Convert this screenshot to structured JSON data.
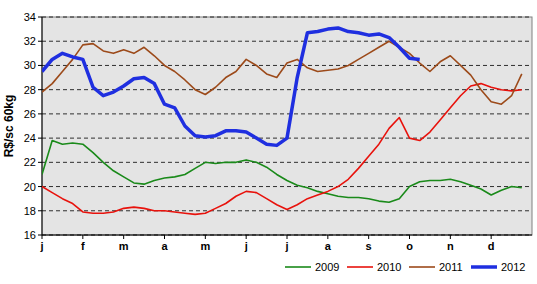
{
  "chart_data": {
    "type": "line",
    "y_label": "R$/sc 60kg",
    "categories": [
      "j",
      null,
      null,
      null,
      "f",
      null,
      null,
      null,
      "m",
      null,
      null,
      null,
      "a",
      null,
      null,
      null,
      "m",
      null,
      null,
      null,
      "j",
      null,
      null,
      null,
      "j",
      null,
      null,
      null,
      "a",
      null,
      null,
      null,
      "s",
      null,
      null,
      null,
      "o",
      null,
      null,
      null,
      "n",
      null,
      null,
      null,
      "d",
      null,
      null,
      null
    ],
    "series": [
      {
        "name": "2009",
        "color": "#1a8a1a",
        "values": [
          21,
          23.8,
          23.5,
          23.6,
          23.5,
          22.8,
          22,
          21.3,
          20.8,
          20.3,
          20.2,
          20.5,
          20.7,
          20.8,
          21,
          21.5,
          22,
          21.9,
          22,
          22,
          22.2,
          22,
          21.6,
          21,
          20.5,
          20.1,
          19.9,
          19.6,
          19.4,
          19.2,
          19.1,
          19.1,
          19,
          18.8,
          18.7,
          19,
          20,
          20.4,
          20.5,
          20.5,
          20.6,
          20.4,
          20.1,
          19.8,
          19.3,
          19.7,
          20,
          19.9
        ]
      },
      {
        "name": "2010",
        "color": "#e8120c",
        "values": [
          20,
          19.5,
          19,
          18.6,
          17.9,
          17.8,
          17.8,
          17.9,
          18.2,
          18.3,
          18.2,
          18,
          18,
          17.9,
          17.8,
          17.7,
          17.8,
          18.2,
          18.6,
          19.2,
          19.6,
          19.5,
          19,
          18.5,
          18.1,
          18.5,
          19,
          19.3,
          19.6,
          20,
          20.6,
          21.5,
          22.5,
          23.5,
          24.8,
          25.7,
          24,
          23.8,
          24.5,
          25.5,
          26.5,
          27.5,
          28.3,
          28.5,
          28.2,
          28,
          27.9,
          28
        ]
      },
      {
        "name": "2011",
        "color": "#9c4a1a",
        "values": [
          27.8,
          28.5,
          29.5,
          30.5,
          31.7,
          31.8,
          31.2,
          31,
          31.3,
          31,
          31.5,
          30.8,
          30,
          29.5,
          28.8,
          28,
          27.6,
          28.2,
          29,
          29.5,
          30.5,
          30,
          29.3,
          29,
          30.2,
          30.5,
          29.8,
          29.5,
          29.6,
          29.7,
          30,
          30.5,
          31,
          31.5,
          32,
          31.5,
          31,
          30.2,
          29.5,
          30.3,
          30.8,
          30,
          29.2,
          28,
          27,
          26.8,
          27.5,
          29.3
        ]
      },
      {
        "name": "2012",
        "color": "#1f2fe0",
        "line_style": "thick",
        "values": [
          29.5,
          30.5,
          31,
          30.7,
          30.5,
          28.2,
          27.5,
          27.8,
          28.3,
          28.9,
          29,
          28.5,
          26.8,
          26.5,
          25,
          24.2,
          24.1,
          24.2,
          24.6,
          24.6,
          24.5,
          24,
          23.5,
          23.4,
          24,
          29,
          32.7,
          32.8,
          33,
          33.1,
          32.8,
          32.7,
          32.5,
          32.6,
          32.3,
          31.5,
          30.6,
          30.5,
          null,
          null,
          null,
          null,
          null,
          null,
          null,
          null,
          null,
          null
        ]
      }
    ],
    "ylim": [
      16,
      34
    ],
    "yticks": [
      16,
      18,
      20,
      22,
      24,
      26,
      28,
      30,
      32,
      34
    ],
    "grid": true,
    "legend": "bottom"
  }
}
